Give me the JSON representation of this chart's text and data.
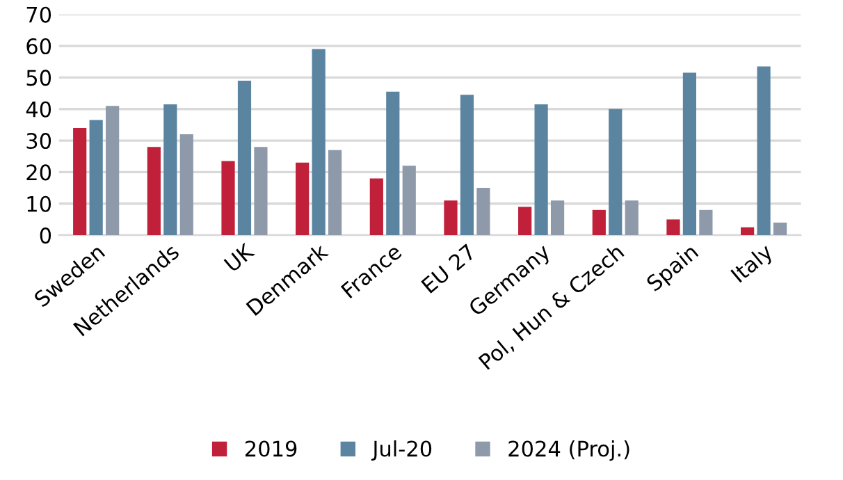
{
  "chart_data": {
    "type": "bar",
    "categories": [
      "Sweden",
      "Netherlands",
      "UK",
      "Denmark",
      "France",
      "EU 27",
      "Germany",
      "Pol, Hun & Czech",
      "Spain",
      "Italy"
    ],
    "series": [
      {
        "name": "2019",
        "color": "#c0203a",
        "values": [
          34,
          28,
          23.5,
          23,
          18,
          11,
          9,
          8,
          5,
          2.5
        ]
      },
      {
        "name": "Jul-20",
        "color": "#5b84a0",
        "values": [
          36.5,
          41.5,
          49,
          59,
          45.5,
          44.5,
          41.5,
          40,
          51.5,
          53.5
        ]
      },
      {
        "name": "2024 (Proj.)",
        "color": "#8e9aaa",
        "values": [
          41,
          32,
          28,
          27,
          22,
          15,
          11,
          11,
          8,
          4
        ]
      }
    ],
    "ylim": [
      0,
      70
    ],
    "yticks": [
      0,
      10,
      20,
      30,
      40,
      50,
      60,
      70
    ],
    "grid": "y",
    "legend": "bottom"
  }
}
